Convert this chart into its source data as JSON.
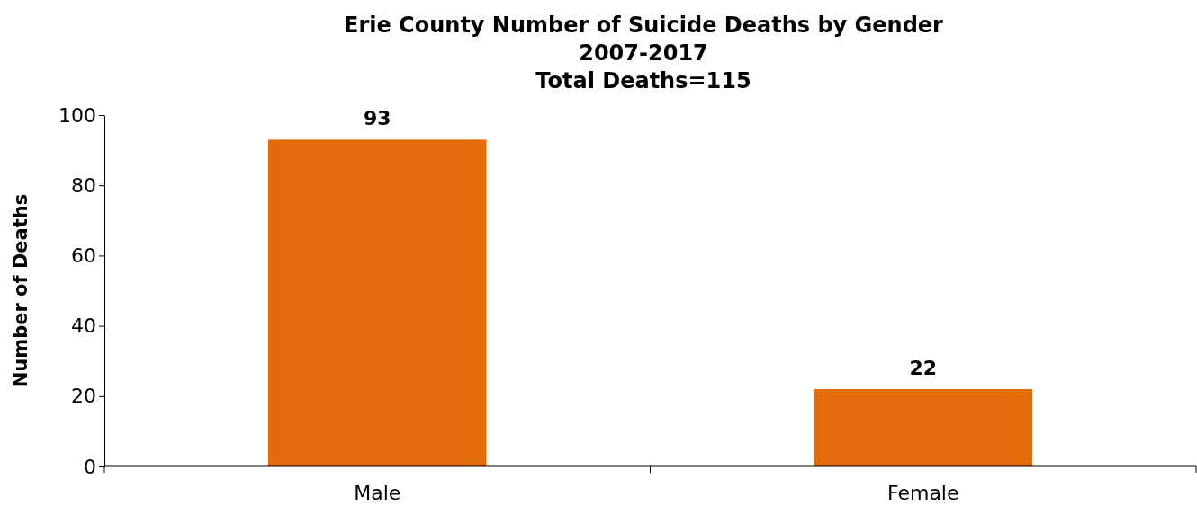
{
  "chart_data": {
    "type": "bar",
    "title": "Erie County Number of Suicide Deaths by Gender\n2007-2017\nTotal Deaths=115",
    "ylabel": "Number of Deaths",
    "categories": [
      "Male",
      "Female"
    ],
    "values": [
      93,
      22
    ],
    "color": "#e36c0a",
    "ylim": [
      0,
      100
    ],
    "yticks": [
      0,
      20,
      40,
      60,
      80,
      100
    ],
    "grid": false,
    "data_labels": true
  }
}
